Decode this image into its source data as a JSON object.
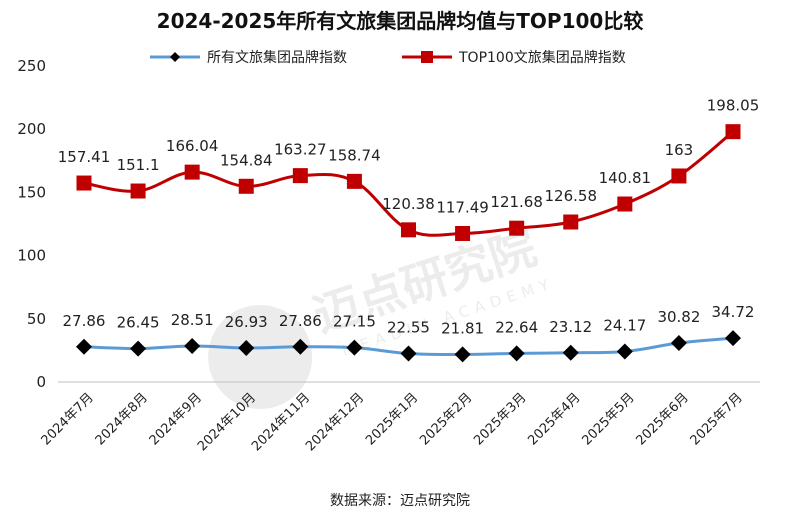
{
  "chart_data": {
    "type": "line",
    "title": "2024-2025年所有文旅集团品牌均值与TOP100比较",
    "categories": [
      "2024年7月",
      "2024年8月",
      "2024年9月",
      "2024年10月",
      "2024年11月",
      "2024年12月",
      "2025年1月",
      "2025年2月",
      "2025年3月",
      "2025年4月",
      "2025年5月",
      "2025年6月",
      "2025年7月"
    ],
    "series": [
      {
        "name": "所有文旅集团品牌指数",
        "color": "#5b9bd5",
        "marker": "diamond",
        "marker_color": "#000000",
        "values": [
          27.86,
          26.45,
          28.51,
          26.93,
          27.86,
          27.15,
          22.55,
          21.81,
          22.64,
          23.12,
          24.17,
          30.82,
          34.72
        ]
      },
      {
        "name": "TOP100文旅集团品牌指数",
        "color": "#c00000",
        "marker": "square",
        "marker_color": "#c00000",
        "values": [
          157.41,
          151.1,
          166.04,
          154.84,
          163.27,
          158.74,
          120.38,
          117.49,
          121.68,
          126.58,
          140.81,
          163,
          198.05
        ]
      }
    ],
    "ylim": [
      0,
      250
    ],
    "yticks": [
      0,
      50,
      100,
      150,
      200,
      250
    ],
    "xlabel": "",
    "ylabel": "",
    "legend_position": "top-center",
    "grid": false
  },
  "source": "数据来源：迈点研究院",
  "watermark": {
    "cn": "迈点研究院",
    "en": "MEADIN ACADEMY"
  }
}
